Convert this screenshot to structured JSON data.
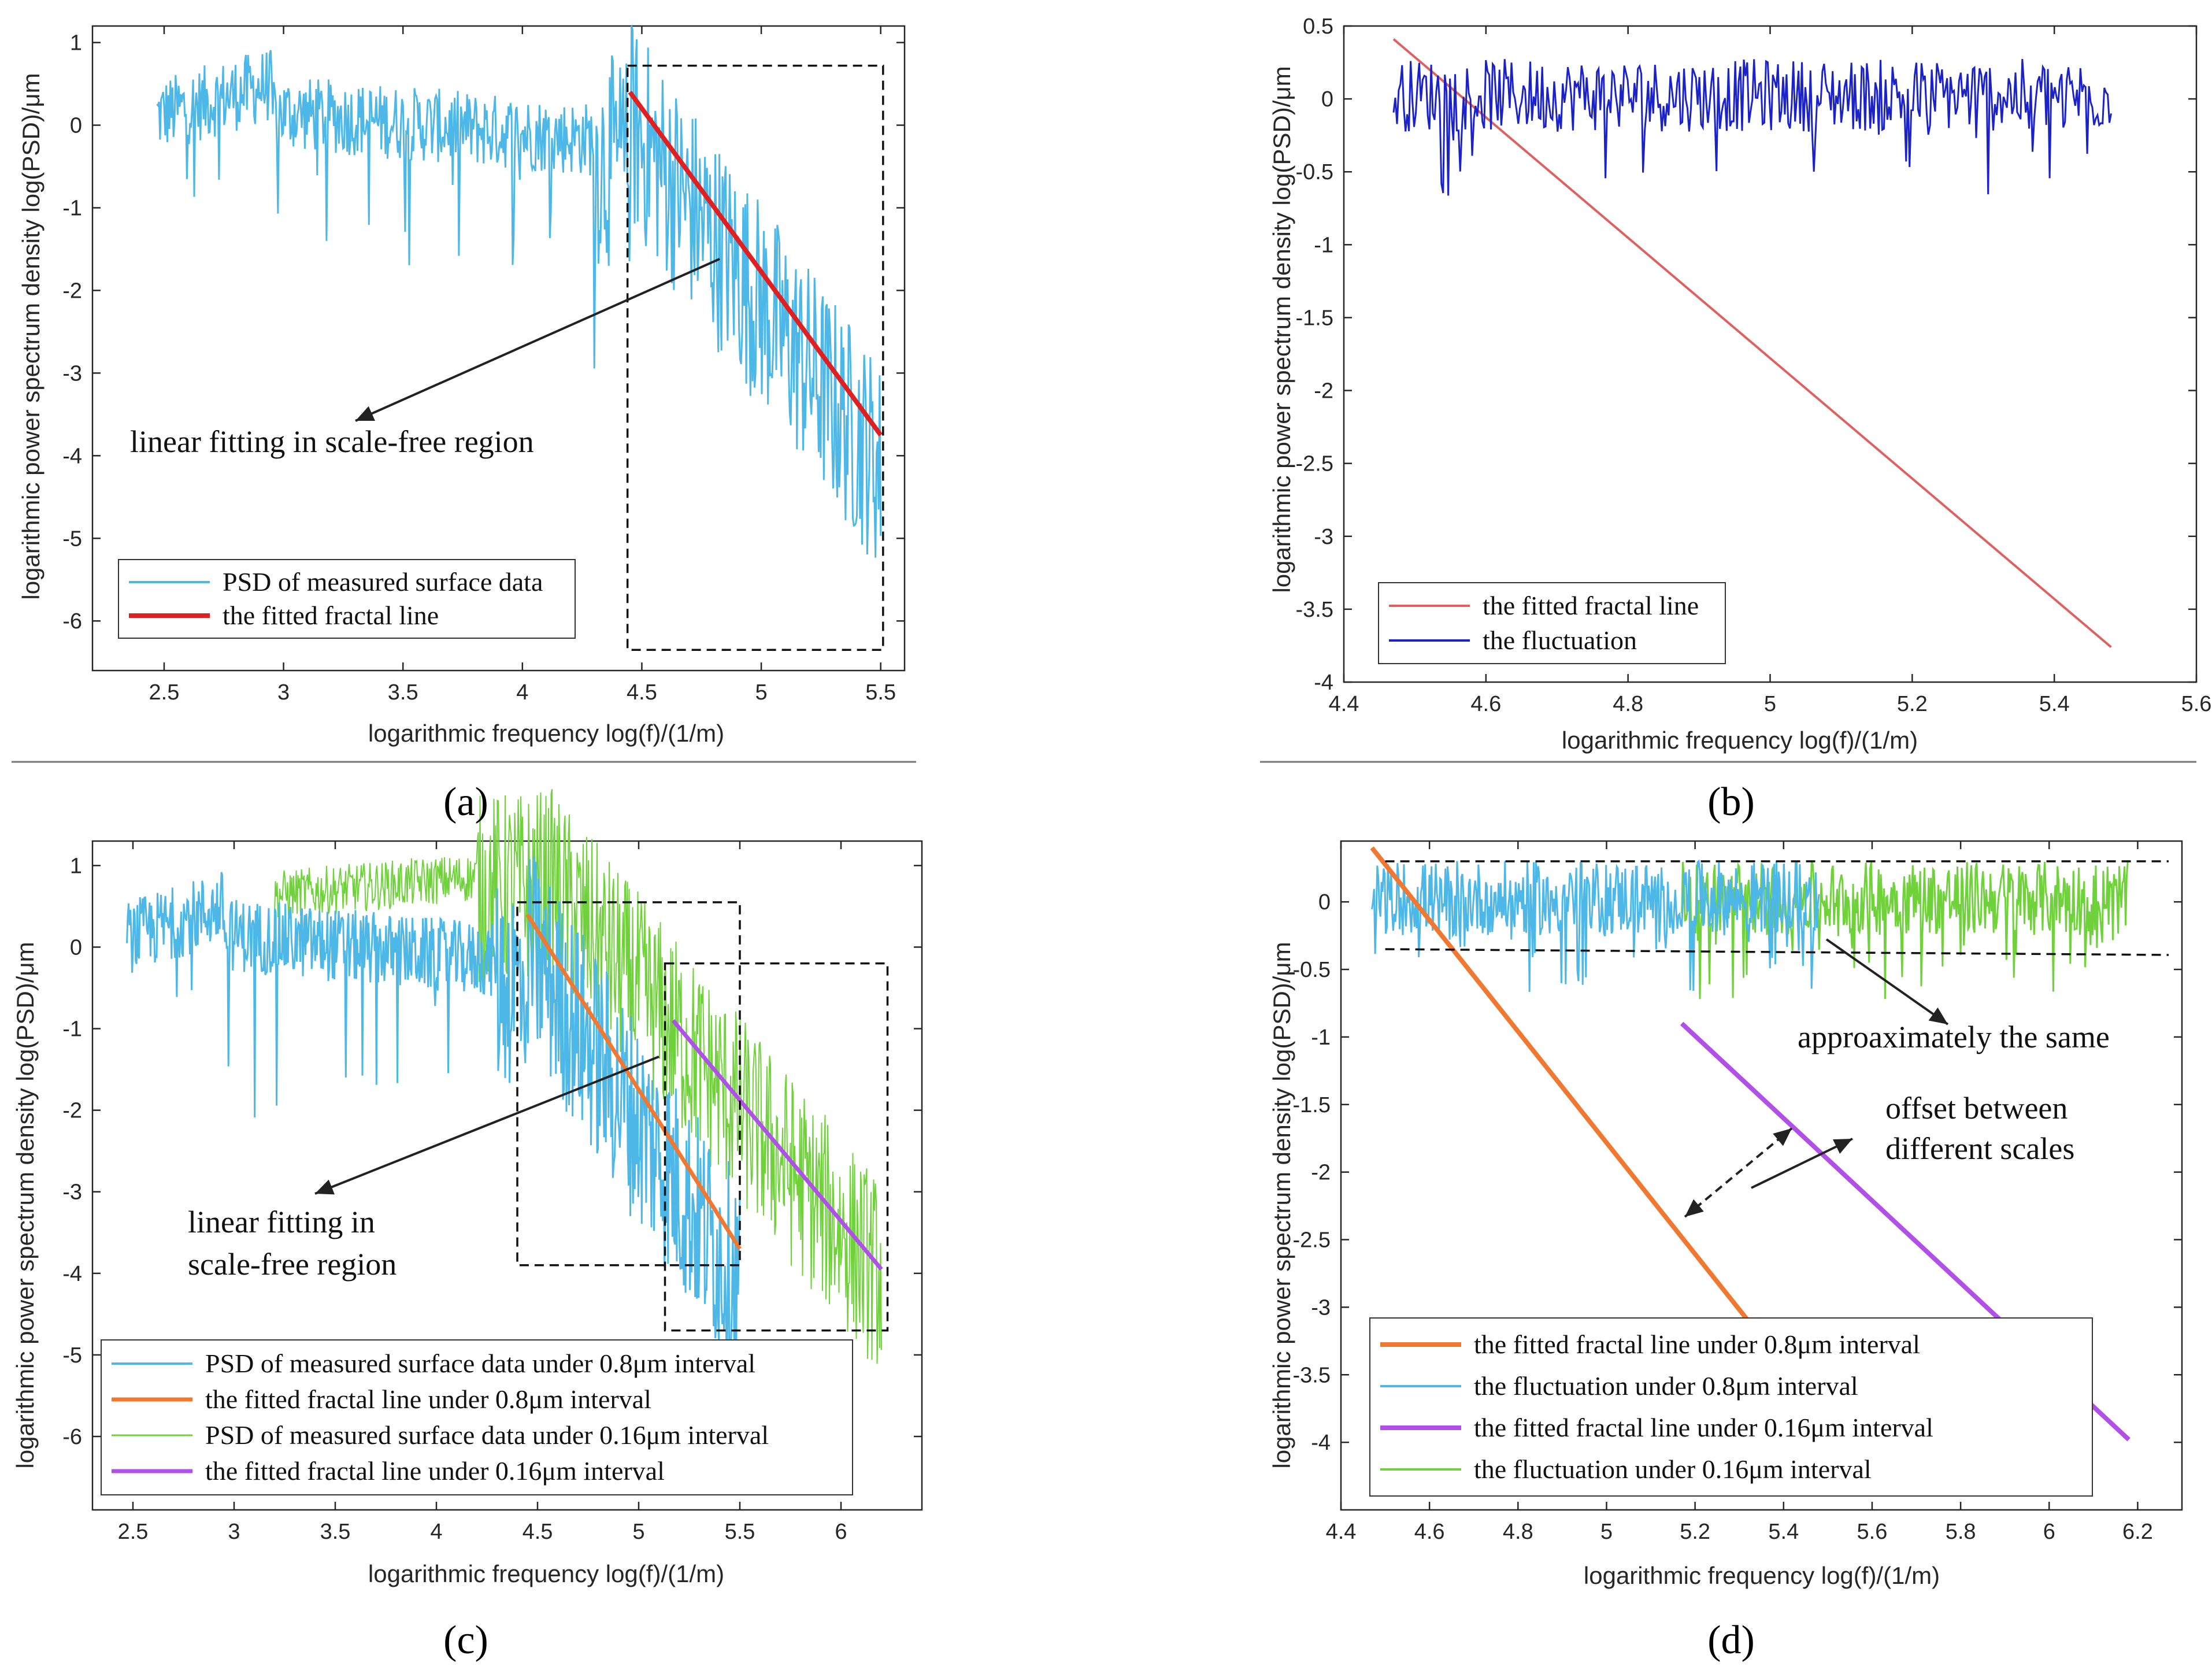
{
  "colors": {
    "psd_08": "#4db8e8",
    "psd_016": "#6fd23a",
    "fit_red": "#e02020",
    "fit_orange": "#f07830",
    "fit_purple": "#b050e8",
    "fluct_blue": "#1a22c8",
    "fit_pink": "#e06060"
  },
  "chart_data": [
    {
      "id": "a",
      "type": "line",
      "caption": "(a)",
      "xlabel": "logarithmic frequency log(f)/(1/m)",
      "ylabel": "logarithmic power spectrum density log(PSD)/μm",
      "xlim": [
        2.2,
        5.6
      ],
      "ylim": [
        -6.6,
        1.2
      ],
      "xticks": [
        "2.5",
        "3",
        "3.5",
        "4",
        "4.5",
        "5",
        "5.5"
      ],
      "yticks": [
        "1",
        "0",
        "-1",
        "-2",
        "-3",
        "-4",
        "-5",
        "-6"
      ],
      "series": [
        {
          "name": "PSD of measured surface data",
          "color_key": "psd_08",
          "kind": "psd",
          "x_range": [
            2.47,
            5.5
          ]
        },
        {
          "name": "the fitted fractal line",
          "color_key": "fit_red",
          "kind": "fit",
          "x": [
            4.45,
            5.5
          ],
          "y": [
            0.4,
            -3.75
          ]
        }
      ],
      "annotations": [
        {
          "text": "linear fitting in scale-free region"
        }
      ],
      "boxes": [
        {
          "x": [
            4.44,
            5.51
          ],
          "y": [
            -6.35,
            0.72
          ]
        }
      ]
    },
    {
      "id": "b",
      "type": "line",
      "caption": "(b)",
      "xlabel": "logarithmic frequency log(f)/(1/m)",
      "ylabel": "logarithmic power spectrum density log(PSD)/μm",
      "xlim": [
        4.4,
        5.6
      ],
      "ylim": [
        -4.0,
        0.5
      ],
      "xticks": [
        "4.4",
        "4.6",
        "4.8",
        "5",
        "5.2",
        "5.4",
        "5.6"
      ],
      "yticks": [
        "0.5",
        "0",
        "-0.5",
        "-1",
        "-1.5",
        "-2",
        "-2.5",
        "-3",
        "-3.5",
        "-4"
      ],
      "series": [
        {
          "name": "the fitted fractal line",
          "color_key": "fit_pink",
          "kind": "fit",
          "x": [
            4.47,
            5.48
          ],
          "y": [
            0.41,
            -3.76
          ]
        },
        {
          "name": "the fluctuation",
          "color_key": "fluct_blue",
          "kind": "fluct",
          "x_range": [
            4.47,
            5.48
          ]
        }
      ]
    },
    {
      "id": "c",
      "type": "line",
      "caption": "(c)",
      "xlabel": "logarithmic frequency log(f)/(1/m)",
      "ylabel": "logarithmic power spectrum density log(PSD)/μm",
      "xlim": [
        2.3,
        6.4
      ],
      "ylim": [
        -6.9,
        1.3
      ],
      "xticks": [
        "2.5",
        "3",
        "3.5",
        "4",
        "4.5",
        "5",
        "5.5",
        "6"
      ],
      "yticks": [
        "1",
        "0",
        "-1",
        "-2",
        "-3",
        "-4",
        "-5",
        "-6"
      ],
      "series": [
        {
          "name": "PSD of measured surface data under 0.8μm interval",
          "color_key": "psd_08",
          "kind": "psd",
          "x_range": [
            2.47,
            5.5
          ]
        },
        {
          "name": "the fitted fractal line under 0.8μm interval",
          "color_key": "fit_orange",
          "kind": "fit",
          "x": [
            4.45,
            5.5
          ],
          "y": [
            0.4,
            -3.7
          ]
        },
        {
          "name": "PSD of measured surface data under 0.16μm interval",
          "color_key": "psd_016",
          "kind": "psd",
          "x_range": [
            3.2,
            6.2
          ]
        },
        {
          "name": "the fitted fractal line under 0.16μm interval",
          "color_key": "fit_purple",
          "kind": "fit",
          "x": [
            5.17,
            6.2
          ],
          "y": [
            -0.9,
            -3.95
          ]
        }
      ],
      "annotations": [
        {
          "text": "linear fitting in"
        },
        {
          "text": "scale-free region"
        }
      ],
      "boxes": [
        {
          "x": [
            4.4,
            5.5
          ],
          "y": [
            -3.9,
            0.55
          ]
        },
        {
          "x": [
            5.13,
            6.23
          ],
          "y": [
            -4.7,
            -0.2
          ]
        }
      ]
    },
    {
      "id": "d",
      "type": "line",
      "caption": "(d)",
      "xlabel": "logarithmic frequency log(f)/(1/m)",
      "ylabel": "logarithmic power spectrum density log(PSD)/μm",
      "xlim": [
        4.4,
        6.3
      ],
      "ylim": [
        -4.5,
        0.45
      ],
      "xticks": [
        "4.4",
        "4.6",
        "4.8",
        "5",
        "5.2",
        "5.4",
        "5.6",
        "5.8",
        "6",
        "6.2"
      ],
      "yticks": [
        "0",
        "-0.5",
        "-1",
        "-1.5",
        "-2",
        "-2.5",
        "-3",
        "-3.5",
        "-4"
      ],
      "series": [
        {
          "name": "the fitted fractal line under 0.8μm interval",
          "color_key": "fit_orange",
          "kind": "fit",
          "x": [
            4.47,
            5.32
          ],
          "y": [
            0.4,
            -3.1
          ]
        },
        {
          "name": "the fluctuation under 0.8μm interval",
          "color_key": "psd_08",
          "kind": "fluct",
          "x_range": [
            4.47,
            5.48
          ]
        },
        {
          "name": "the fitted fractal line under 0.16μm interval",
          "color_key": "fit_purple",
          "kind": "fit",
          "x": [
            5.17,
            6.18
          ],
          "y": [
            -0.9,
            -3.98
          ]
        },
        {
          "name": "the fluctuation under 0.16μm interval",
          "color_key": "psd_016",
          "kind": "fluct",
          "x_range": [
            5.17,
            6.18
          ]
        }
      ],
      "annotations": [
        {
          "text": "approaximately the same"
        },
        {
          "text": "offset between"
        },
        {
          "text": "different scales"
        }
      ],
      "boxes": [
        {
          "x": [
            4.5,
            6.27
          ],
          "y": [
            -0.35,
            0.3
          ]
        }
      ]
    }
  ]
}
